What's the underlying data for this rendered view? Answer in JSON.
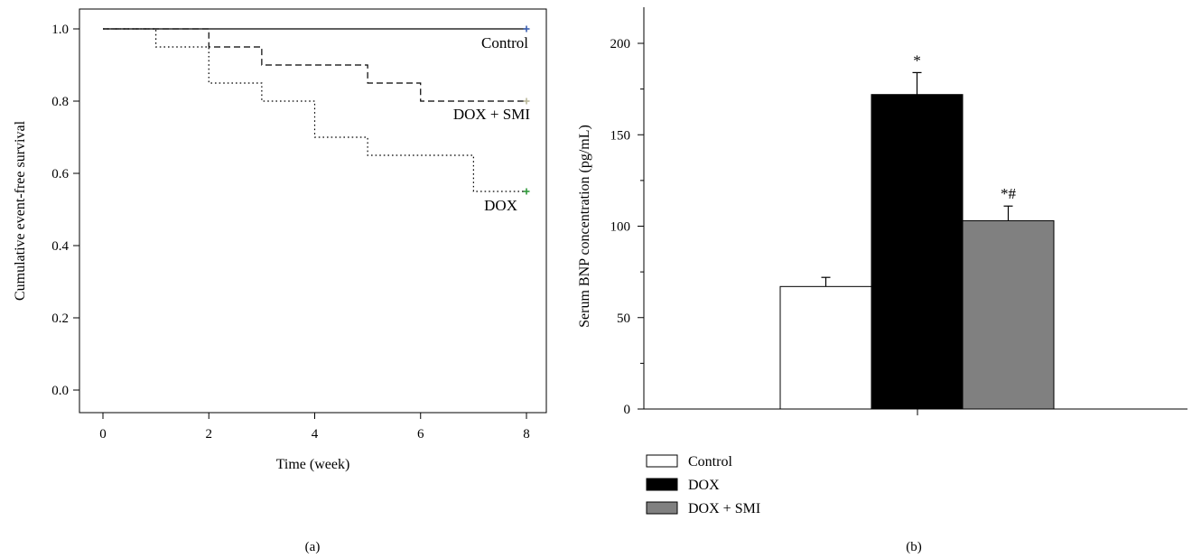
{
  "colors": {
    "axis": "#000000",
    "control_censor": "#3b5fb0",
    "dox_smi_censor": "#b9b79a",
    "dox_censor": "#2f9a3a",
    "bar_control": "#ffffff",
    "bar_dox": "#000000",
    "bar_dox_smi": "#808080"
  },
  "chart_data": [
    {
      "panel": "(a)",
      "type": "line",
      "xlabel": "Time (week)",
      "ylabel": "Cumulative event-free survival",
      "xlim": [
        0,
        8
      ],
      "ylim": [
        0.0,
        1.0
      ],
      "xticks": [
        0,
        2,
        4,
        6,
        8
      ],
      "yticks": [
        0.0,
        0.2,
        0.4,
        0.6,
        0.8,
        1.0
      ],
      "ytick_labels": [
        "0.0",
        "0.2",
        "0.4",
        "0.6",
        "0.8",
        "1.0"
      ],
      "grid": false,
      "series": [
        {
          "name": "Control",
          "line_style": "solid",
          "points": [
            [
              0,
              1.0
            ],
            [
              8,
              1.0
            ]
          ],
          "censor_at": 8,
          "color_key": "control_censor"
        },
        {
          "name": "DOX + SMI",
          "line_style": "dashed",
          "points": [
            [
              0,
              1.0
            ],
            [
              2,
              0.95
            ],
            [
              3,
              0.9
            ],
            [
              5,
              0.85
            ],
            [
              6,
              0.8
            ],
            [
              8,
              0.8
            ]
          ],
          "censor_at": 8,
          "color_key": "dox_smi_censor"
        },
        {
          "name": "DOX",
          "line_style": "dotted",
          "points": [
            [
              0,
              1.0
            ],
            [
              1,
              0.95
            ],
            [
              2,
              0.85
            ],
            [
              3,
              0.8
            ],
            [
              4,
              0.7
            ],
            [
              5,
              0.65
            ],
            [
              7,
              0.55
            ],
            [
              8,
              0.55
            ]
          ],
          "censor_at": 8,
          "color_key": "dox_censor"
        }
      ]
    },
    {
      "panel": "(b)",
      "type": "bar",
      "ylabel": "Serum BNP concentration (pg/mL)",
      "xlabel": "",
      "ylim": [
        0,
        200
      ],
      "yticks": [
        0,
        50,
        100,
        150,
        200
      ],
      "grid": false,
      "legend_placement": "bottom-left",
      "categories": [
        "Control",
        "DOX",
        "DOX + SMI"
      ],
      "values": [
        67,
        172,
        103
      ],
      "errors": [
        5,
        12,
        8
      ],
      "annotations": [
        "",
        "*",
        "*#"
      ],
      "color_keys": [
        "bar_control",
        "bar_dox",
        "bar_dox_smi"
      ]
    }
  ]
}
